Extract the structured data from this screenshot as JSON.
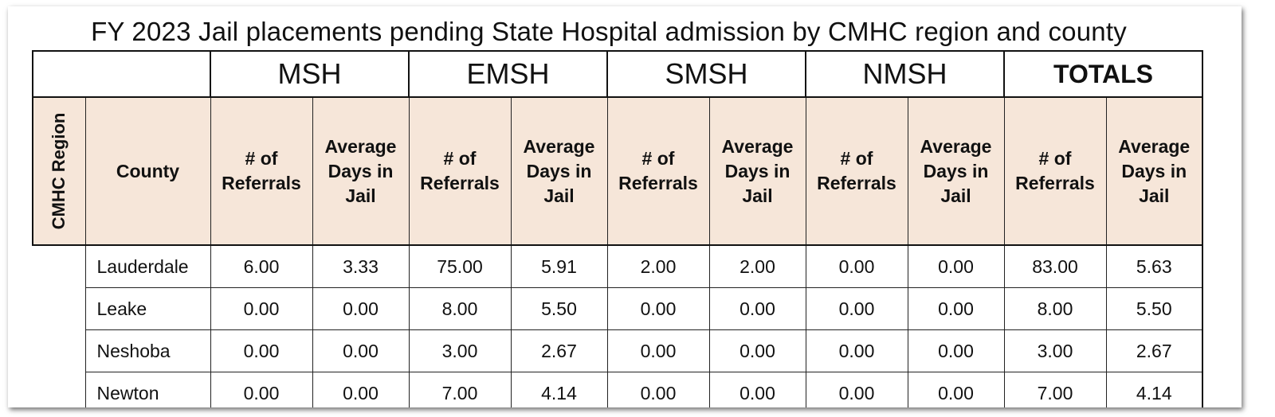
{
  "title": "FY 2023 Jail placements pending State Hospital admission by CMHC region and county",
  "groups": [
    "MSH",
    "EMSH",
    "SMSH",
    "NMSH",
    "TOTALS"
  ],
  "headers": {
    "region": "CMHC Region",
    "county": "County",
    "referrals_line1": "# of",
    "referrals_line2": "Referrals",
    "avg_line1": "Average",
    "avg_line2": "Days in",
    "avg_line3": "Jail"
  },
  "rows": [
    {
      "county": "Lauderdale",
      "values": [
        "6.00",
        "3.33",
        "75.00",
        "5.91",
        "2.00",
        "2.00",
        "0.00",
        "0.00",
        "83.00",
        "5.63"
      ]
    },
    {
      "county": "Leake",
      "values": [
        "0.00",
        "0.00",
        "8.00",
        "5.50",
        "0.00",
        "0.00",
        "0.00",
        "0.00",
        "8.00",
        "5.50"
      ]
    },
    {
      "county": "Neshoba",
      "values": [
        "0.00",
        "0.00",
        "3.00",
        "2.67",
        "0.00",
        "0.00",
        "0.00",
        "0.00",
        "3.00",
        "2.67"
      ]
    },
    {
      "county": "Newton",
      "values": [
        "0.00",
        "0.00",
        "7.00",
        "4.14",
        "0.00",
        "0.00",
        "0.00",
        "0.00",
        "7.00",
        "4.14"
      ]
    }
  ]
}
